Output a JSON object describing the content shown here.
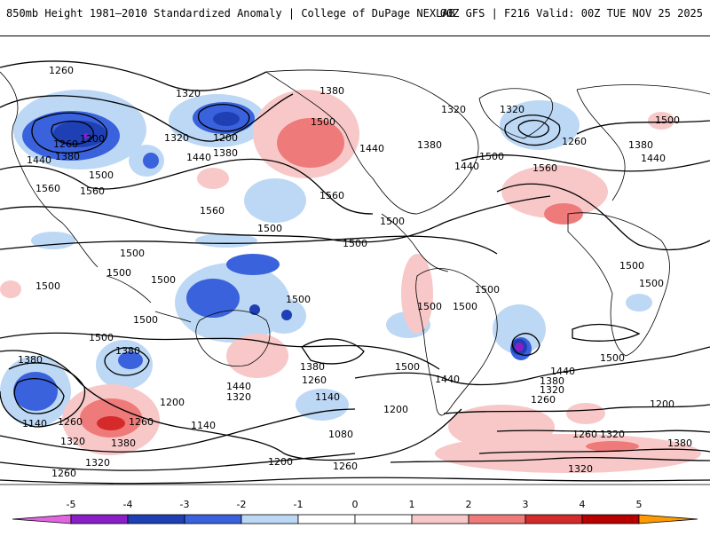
{
  "header": {
    "left_title": "850mb Height 1981–2010 Standardized Anomaly | College of DuPage NEXLAB",
    "right_title": "00Z GFS | F216 Valid: 00Z TUE NOV 25 2025"
  },
  "contour_labels": {
    "v1080": "1080",
    "v1140": "1140",
    "v1200": "1200",
    "v1260": "1260",
    "v1320": "1320",
    "v1380": "1380",
    "v1440": "1440",
    "v1500": "1500",
    "v1560": "1560"
  },
  "colorbar": {
    "ticks": [
      "-5",
      "-4",
      "-3",
      "-2",
      "-1",
      "0",
      "1",
      "2",
      "3",
      "4",
      "5"
    ],
    "colors": [
      "#e066e0",
      "#8a1fc8",
      "#1f3fb4",
      "#3a62dc",
      "#bcd8f5",
      "#ffffff",
      "#ffffff",
      "#f8c8c8",
      "#ef7a7a",
      "#d42a2a",
      "#b80000",
      "#ff9a00",
      "#ffcc33"
    ],
    "anomaly_neg": "#3a62dc",
    "anomaly_neg_light": "#bcd8f5",
    "anomaly_pos": "#ef7a7a",
    "anomaly_pos_light": "#f8c8c8",
    "anomaly_strong_neg": "#8a1fc8",
    "anomaly_strong_pos": "#d42a2a"
  }
}
